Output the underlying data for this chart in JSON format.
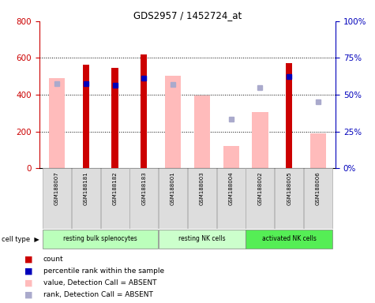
{
  "title": "GDS2957 / 1452724_at",
  "samples": [
    "GSM188007",
    "GSM188181",
    "GSM188182",
    "GSM188183",
    "GSM188001",
    "GSM188003",
    "GSM188004",
    "GSM188002",
    "GSM188005",
    "GSM188006"
  ],
  "groups": [
    {
      "label": "resting bulk splenocytes",
      "color": "#bbffbb",
      "start": 0,
      "end": 4
    },
    {
      "label": "resting NK cells",
      "color": "#ccffcc",
      "start": 4,
      "end": 7
    },
    {
      "label": "activated NK cells",
      "color": "#55ee55",
      "start": 7,
      "end": 10
    }
  ],
  "red_bars": [
    null,
    565,
    545,
    620,
    null,
    null,
    null,
    null,
    570,
    null
  ],
  "pink_bars": [
    490,
    null,
    null,
    null,
    505,
    395,
    120,
    305,
    null,
    190
  ],
  "blue_squares": [
    null,
    57.5,
    56.3,
    61.3,
    null,
    null,
    null,
    null,
    62.5,
    null
  ],
  "lavender_squares": [
    57.5,
    null,
    null,
    null,
    56.9,
    null,
    33.1,
    55.0,
    null,
    45.0
  ],
  "ylim_left": [
    0,
    800
  ],
  "ylim_right": [
    0,
    100
  ],
  "left_ticks": [
    0,
    200,
    400,
    600,
    800
  ],
  "right_ticks": [
    0,
    25,
    50,
    75,
    100
  ],
  "right_tick_labels": [
    "0%",
    "25%",
    "50%",
    "75%",
    "100%"
  ],
  "red_color": "#cc0000",
  "pink_color": "#ffbbbb",
  "blue_color": "#0000bb",
  "lavender_color": "#aaaacc",
  "ylabel_left_color": "#cc0000",
  "ylabel_right_color": "#0000bb",
  "tick_gray_bg": "#dddddd",
  "tick_border": "#aaaaaa"
}
